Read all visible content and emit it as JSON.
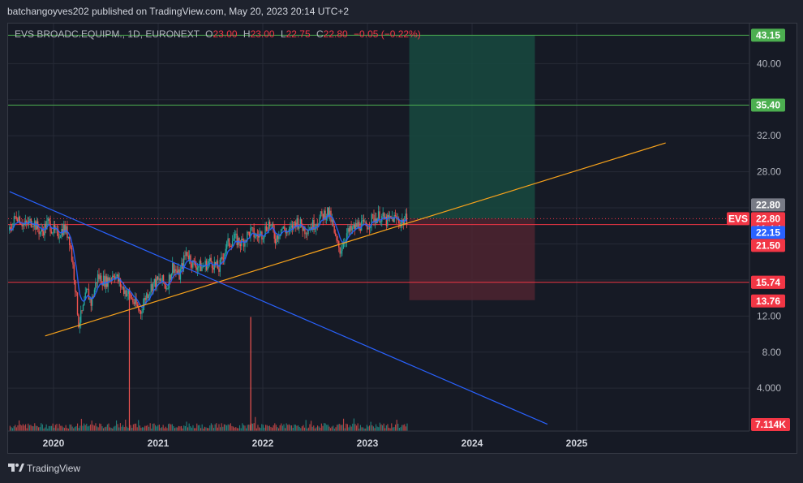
{
  "header": {
    "publish_line": "batchangoyves202 published on TradingView.com, May 20, 2023 20:14 UTC+2"
  },
  "legend": {
    "symbol": "EVS BROADC.EQUIPM., 1D, EURONEXT",
    "o_label": "O",
    "o_value": "23.00",
    "h_label": "H",
    "h_value": "23.00",
    "l_label": "L",
    "l_value": "22.75",
    "c_label": "C",
    "c_value": "22.80",
    "change": "−0.05 (−0.22%)"
  },
  "footer": {
    "brand": "TradingView"
  },
  "colors": {
    "background": "#161a25",
    "grid": "#262a36",
    "up": "#26a69a",
    "down": "#ef5350",
    "green_line": "#4caf50",
    "red_line": "#f23645",
    "orange_line": "#f7a21b",
    "blue_line": "#2962ff",
    "target_zone": "#184a40",
    "stop_zone": "#4e2530"
  },
  "chart_data": {
    "type": "candlestick",
    "currency": "EUR",
    "yaxis_ticks": [
      "4.000",
      "8.00",
      "12.00",
      "28.00",
      "32.00",
      "40.00"
    ],
    "yaxis_tick_values": [
      4,
      8,
      12,
      28,
      32,
      40
    ],
    "xaxis_ticks": [
      "2020",
      "2021",
      "2022",
      "2023",
      "2024",
      "2025"
    ],
    "xaxis_tick_values": [
      2020.0,
      2021.0,
      2022.0,
      2023.0,
      2024.0,
      2025.0
    ],
    "horizontal_levels": [
      {
        "label": "43.15",
        "value": 43.15,
        "color": "#4caf50"
      },
      {
        "label": "35.40",
        "value": 35.4,
        "color": "#4caf50"
      },
      {
        "label": "22.15",
        "value": 22.15,
        "color": "#f23645"
      },
      {
        "label": "15.74",
        "value": 15.74,
        "color": "#f23645"
      }
    ],
    "price_labels": [
      {
        "label": "22.80",
        "value": 22.8,
        "kind": "last-close",
        "color": "#787b86"
      },
      {
        "label": "22.80",
        "value": 22.8,
        "kind": "symbol",
        "symbol": "EVS",
        "color": "#f23645"
      },
      {
        "label": "22.15",
        "value": 22.15,
        "kind": "level",
        "color": "#2962ff"
      },
      {
        "label": "21.50",
        "value": 21.5,
        "kind": "level",
        "color": "#f23645"
      },
      {
        "label": "15.74",
        "value": 15.74,
        "kind": "level",
        "color": "#f23645"
      },
      {
        "label": "13.76",
        "value": 13.76,
        "kind": "level",
        "color": "#f23645"
      },
      {
        "label": "7.114K",
        "value": 7114,
        "kind": "volume",
        "color": "#f23645"
      }
    ],
    "position": {
      "entry": 22.8,
      "target": 43.15,
      "stop": 13.76,
      "start_date": 2023.4,
      "end_date": 2024.6
    },
    "trendlines": [
      {
        "name": "ascending",
        "color": "#f7a21b",
        "points": [
          [
            2019.92,
            9.8
          ],
          [
            2025.85,
            31.2
          ]
        ]
      },
      {
        "name": "descending",
        "color": "#2962ff",
        "points": [
          [
            2019.58,
            25.8
          ],
          [
            2024.72,
            0.0
          ]
        ]
      }
    ],
    "price_path": [
      [
        2019.58,
        21.5
      ],
      [
        2019.65,
        23.3
      ],
      [
        2019.72,
        22.0
      ],
      [
        2019.8,
        22.6
      ],
      [
        2019.88,
        21.2
      ],
      [
        2019.95,
        22.4
      ],
      [
        2020.03,
        20.9
      ],
      [
        2020.1,
        21.8
      ],
      [
        2020.15,
        20.8
      ],
      [
        2020.2,
        16.2
      ],
      [
        2020.24,
        11.2
      ],
      [
        2020.28,
        12.6
      ],
      [
        2020.32,
        14.8
      ],
      [
        2020.36,
        13.4
      ],
      [
        2020.42,
        16.4
      ],
      [
        2020.5,
        15.8
      ],
      [
        2020.58,
        16.8
      ],
      [
        2020.65,
        15.2
      ],
      [
        2020.72,
        14.4
      ],
      [
        2020.78,
        13.3
      ],
      [
        2020.83,
        12.4
      ],
      [
        2020.88,
        14.2
      ],
      [
        2020.95,
        15.6
      ],
      [
        2021.03,
        16.0
      ],
      [
        2021.08,
        15.2
      ],
      [
        2021.14,
        17.6
      ],
      [
        2021.2,
        16.4
      ],
      [
        2021.27,
        19.2
      ],
      [
        2021.33,
        17.8
      ],
      [
        2021.42,
        17.4
      ],
      [
        2021.5,
        18.1
      ],
      [
        2021.58,
        17.2
      ],
      [
        2021.65,
        19.8
      ],
      [
        2021.72,
        20.6
      ],
      [
        2021.8,
        20.1
      ],
      [
        2021.88,
        21.4
      ],
      [
        2021.94,
        20.8
      ],
      [
        2022.0,
        21.2
      ],
      [
        2022.06,
        22.4
      ],
      [
        2022.12,
        20.6
      ],
      [
        2022.18,
        21.8
      ],
      [
        2022.25,
        21.2
      ],
      [
        2022.32,
        22.6
      ],
      [
        2022.4,
        21.6
      ],
      [
        2022.48,
        22.1
      ],
      [
        2022.55,
        22.9
      ],
      [
        2022.62,
        23.6
      ],
      [
        2022.66,
        22.4
      ],
      [
        2022.7,
        20.2
      ],
      [
        2022.74,
        19.3
      ],
      [
        2022.8,
        21.1
      ],
      [
        2022.86,
        21.6
      ],
      [
        2022.92,
        22.2
      ],
      [
        2022.98,
        21.9
      ],
      [
        2023.05,
        22.8
      ],
      [
        2023.12,
        23.1
      ],
      [
        2023.18,
        22.5
      ],
      [
        2023.25,
        22.9
      ],
      [
        2023.32,
        22.4
      ],
      [
        2023.38,
        22.8
      ]
    ],
    "volume_spikes": [
      {
        "date": 2020.72,
        "height": 0.35
      },
      {
        "date": 2021.88,
        "height": 0.28
      }
    ]
  }
}
